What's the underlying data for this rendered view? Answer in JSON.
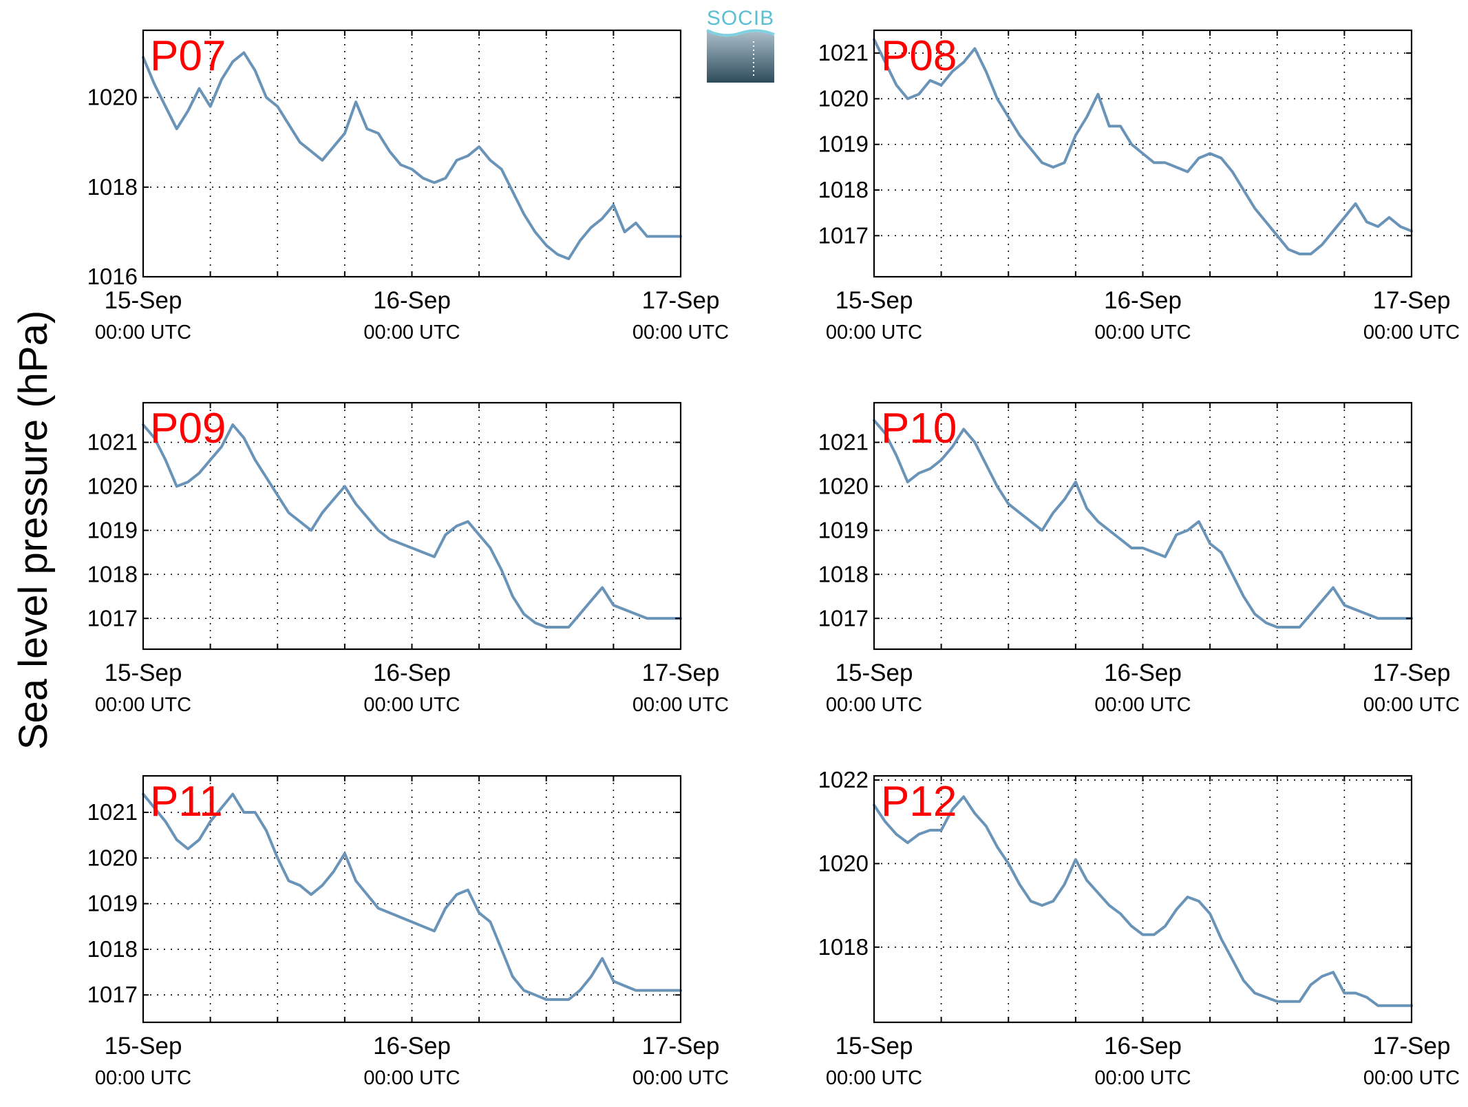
{
  "figure": {
    "ylabel": "Sea level pressure (hPa)",
    "logo_text": "SOCIB",
    "line_color": "#6a93b8",
    "title_color": "#ff0000"
  },
  "chart_data": [
    {
      "type": "line",
      "title": "P07",
      "x_ticks": [
        {
          "date": "15-Sep",
          "time": "00:00 UTC"
        },
        {
          "date": "16-Sep",
          "time": "00:00 UTC"
        },
        {
          "date": "17-Sep",
          "time": "00:00 UTC"
        }
      ],
      "x_range_hours": [
        0,
        48
      ],
      "ylim": [
        1016,
        1021.5
      ],
      "yticks": [
        1016,
        1018,
        1020
      ],
      "grid": true,
      "x": [
        0,
        1,
        2,
        3,
        4,
        5,
        6,
        7,
        8,
        9,
        10,
        11,
        12,
        13,
        14,
        15,
        16,
        17,
        18,
        19,
        20,
        21,
        22,
        23,
        24,
        25,
        26,
        27,
        28,
        29,
        30,
        31,
        32,
        33,
        34,
        35,
        36,
        37,
        38,
        39,
        40,
        41,
        42,
        43,
        44,
        45,
        46,
        47,
        48
      ],
      "y": [
        1020.9,
        1020.3,
        1019.8,
        1019.3,
        1019.7,
        1020.2,
        1019.8,
        1020.4,
        1020.8,
        1021.0,
        1020.6,
        1020.0,
        1019.8,
        1019.4,
        1019.0,
        1018.8,
        1018.6,
        1018.9,
        1019.2,
        1019.9,
        1019.3,
        1019.2,
        1018.8,
        1018.5,
        1018.4,
        1018.2,
        1018.1,
        1018.2,
        1018.6,
        1018.7,
        1018.9,
        1018.6,
        1018.4,
        1017.9,
        1017.4,
        1017.0,
        1016.7,
        1016.5,
        1016.4,
        1016.8,
        1017.1,
        1017.3,
        1017.6,
        1017.0,
        1017.2,
        1016.9,
        1016.9,
        1016.9,
        1016.9
      ]
    },
    {
      "type": "line",
      "title": "P08",
      "x_ticks": [
        {
          "date": "15-Sep",
          "time": "00:00 UTC"
        },
        {
          "date": "16-Sep",
          "time": "00:00 UTC"
        },
        {
          "date": "17-Sep",
          "time": "00:00 UTC"
        }
      ],
      "x_range_hours": [
        0,
        48
      ],
      "ylim": [
        1016.1,
        1021.5
      ],
      "yticks": [
        1017,
        1018,
        1019,
        1020,
        1021
      ],
      "grid": true,
      "x": [
        0,
        1,
        2,
        3,
        4,
        5,
        6,
        7,
        8,
        9,
        10,
        11,
        12,
        13,
        14,
        15,
        16,
        17,
        18,
        19,
        20,
        21,
        22,
        23,
        24,
        25,
        26,
        27,
        28,
        29,
        30,
        31,
        32,
        33,
        34,
        35,
        36,
        37,
        38,
        39,
        40,
        41,
        42,
        43,
        44,
        45,
        46,
        47,
        48
      ],
      "y": [
        1021.3,
        1020.8,
        1020.3,
        1020.0,
        1020.1,
        1020.4,
        1020.3,
        1020.6,
        1020.8,
        1021.1,
        1020.6,
        1020.0,
        1019.6,
        1019.2,
        1018.9,
        1018.6,
        1018.5,
        1018.6,
        1019.2,
        1019.6,
        1020.1,
        1019.4,
        1019.4,
        1019.0,
        1018.8,
        1018.6,
        1018.6,
        1018.5,
        1018.4,
        1018.7,
        1018.8,
        1018.7,
        1018.4,
        1018.0,
        1017.6,
        1017.3,
        1017.0,
        1016.7,
        1016.6,
        1016.6,
        1016.8,
        1017.1,
        1017.4,
        1017.7,
        1017.3,
        1017.2,
        1017.4,
        1017.2,
        1017.1
      ]
    },
    {
      "type": "line",
      "title": "P09",
      "x_ticks": [
        {
          "date": "15-Sep",
          "time": "00:00 UTC"
        },
        {
          "date": "16-Sep",
          "time": "00:00 UTC"
        },
        {
          "date": "17-Sep",
          "time": "00:00 UTC"
        }
      ],
      "x_range_hours": [
        0,
        48
      ],
      "ylim": [
        1016.3,
        1021.9
      ],
      "yticks": [
        1017,
        1018,
        1019,
        1020,
        1021
      ],
      "grid": true,
      "x": [
        0,
        1,
        2,
        3,
        4,
        5,
        6,
        7,
        8,
        9,
        10,
        11,
        12,
        13,
        14,
        15,
        16,
        17,
        18,
        19,
        20,
        21,
        22,
        23,
        24,
        25,
        26,
        27,
        28,
        29,
        30,
        31,
        32,
        33,
        34,
        35,
        36,
        37,
        38,
        39,
        40,
        41,
        42,
        43,
        44,
        45,
        46,
        47,
        48
      ],
      "y": [
        1021.4,
        1021.1,
        1020.6,
        1020.0,
        1020.1,
        1020.3,
        1020.6,
        1020.9,
        1021.4,
        1021.1,
        1020.6,
        1020.2,
        1019.8,
        1019.4,
        1019.2,
        1019.0,
        1019.4,
        1019.7,
        1020.0,
        1019.6,
        1019.3,
        1019.0,
        1018.8,
        1018.7,
        1018.6,
        1018.5,
        1018.4,
        1018.9,
        1019.1,
        1019.2,
        1018.9,
        1018.6,
        1018.1,
        1017.5,
        1017.1,
        1016.9,
        1016.8,
        1016.8,
        1016.8,
        1017.1,
        1017.4,
        1017.7,
        1017.3,
        1017.2,
        1017.1,
        1017.0,
        1017.0,
        1017.0,
        1017.0
      ]
    },
    {
      "type": "line",
      "title": "P10",
      "x_ticks": [
        {
          "date": "15-Sep",
          "time": "00:00 UTC"
        },
        {
          "date": "16-Sep",
          "time": "00:00 UTC"
        },
        {
          "date": "17-Sep",
          "time": "00:00 UTC"
        }
      ],
      "x_range_hours": [
        0,
        48
      ],
      "ylim": [
        1016.3,
        1021.9
      ],
      "yticks": [
        1017,
        1018,
        1019,
        1020,
        1021
      ],
      "grid": true,
      "x": [
        0,
        1,
        2,
        3,
        4,
        5,
        6,
        7,
        8,
        9,
        10,
        11,
        12,
        13,
        14,
        15,
        16,
        17,
        18,
        19,
        20,
        21,
        22,
        23,
        24,
        25,
        26,
        27,
        28,
        29,
        30,
        31,
        32,
        33,
        34,
        35,
        36,
        37,
        38,
        39,
        40,
        41,
        42,
        43,
        44,
        45,
        46,
        47,
        48
      ],
      "y": [
        1021.5,
        1021.2,
        1020.7,
        1020.1,
        1020.3,
        1020.4,
        1020.6,
        1020.9,
        1021.3,
        1021.0,
        1020.5,
        1020.0,
        1019.6,
        1019.4,
        1019.2,
        1019.0,
        1019.4,
        1019.7,
        1020.1,
        1019.5,
        1019.2,
        1019.0,
        1018.8,
        1018.6,
        1018.6,
        1018.5,
        1018.4,
        1018.9,
        1019.0,
        1019.2,
        1018.7,
        1018.5,
        1018.0,
        1017.5,
        1017.1,
        1016.9,
        1016.8,
        1016.8,
        1016.8,
        1017.1,
        1017.4,
        1017.7,
        1017.3,
        1017.2,
        1017.1,
        1017.0,
        1017.0,
        1017.0,
        1017.0
      ]
    },
    {
      "type": "line",
      "title": "P11",
      "x_ticks": [
        {
          "date": "15-Sep",
          "time": "00:00 UTC"
        },
        {
          "date": "16-Sep",
          "time": "00:00 UTC"
        },
        {
          "date": "17-Sep",
          "time": "00:00 UTC"
        }
      ],
      "x_range_hours": [
        0,
        48
      ],
      "ylim": [
        1016.4,
        1021.8
      ],
      "yticks": [
        1017,
        1018,
        1019,
        1020,
        1021
      ],
      "grid": true,
      "x": [
        0,
        1,
        2,
        3,
        4,
        5,
        6,
        7,
        8,
        9,
        10,
        11,
        12,
        13,
        14,
        15,
        16,
        17,
        18,
        19,
        20,
        21,
        22,
        23,
        24,
        25,
        26,
        27,
        28,
        29,
        30,
        31,
        32,
        33,
        34,
        35,
        36,
        37,
        38,
        39,
        40,
        41,
        42,
        43,
        44,
        45,
        46,
        47,
        48
      ],
      "y": [
        1021.4,
        1021.1,
        1020.8,
        1020.4,
        1020.2,
        1020.4,
        1020.8,
        1021.1,
        1021.4,
        1021.0,
        1021.0,
        1020.6,
        1020.0,
        1019.5,
        1019.4,
        1019.2,
        1019.4,
        1019.7,
        1020.1,
        1019.5,
        1019.2,
        1018.9,
        1018.8,
        1018.7,
        1018.6,
        1018.5,
        1018.4,
        1018.9,
        1019.2,
        1019.3,
        1018.8,
        1018.6,
        1018.0,
        1017.4,
        1017.1,
        1017.0,
        1016.9,
        1016.9,
        1016.9,
        1017.1,
        1017.4,
        1017.8,
        1017.3,
        1017.2,
        1017.1,
        1017.1,
        1017.1,
        1017.1,
        1017.1
      ]
    },
    {
      "type": "line",
      "title": "P12",
      "x_ticks": [
        {
          "date": "15-Sep",
          "time": "00:00 UTC"
        },
        {
          "date": "16-Sep",
          "time": "00:00 UTC"
        },
        {
          "date": "17-Sep",
          "time": "00:00 UTC"
        }
      ],
      "x_range_hours": [
        0,
        48
      ],
      "ylim": [
        1016.2,
        1022.1
      ],
      "yticks": [
        1018,
        1020,
        1022
      ],
      "grid": true,
      "x": [
        0,
        1,
        2,
        3,
        4,
        5,
        6,
        7,
        8,
        9,
        10,
        11,
        12,
        13,
        14,
        15,
        16,
        17,
        18,
        19,
        20,
        21,
        22,
        23,
        24,
        25,
        26,
        27,
        28,
        29,
        30,
        31,
        32,
        33,
        34,
        35,
        36,
        37,
        38,
        39,
        40,
        41,
        42,
        43,
        44,
        45,
        46,
        47,
        48
      ],
      "y": [
        1021.4,
        1021.0,
        1020.7,
        1020.5,
        1020.7,
        1020.8,
        1020.8,
        1021.3,
        1021.6,
        1021.2,
        1020.9,
        1020.4,
        1020.0,
        1019.5,
        1019.1,
        1019.0,
        1019.1,
        1019.5,
        1020.1,
        1019.6,
        1019.3,
        1019.0,
        1018.8,
        1018.5,
        1018.3,
        1018.3,
        1018.5,
        1018.9,
        1019.2,
        1019.1,
        1018.8,
        1018.2,
        1017.7,
        1017.2,
        1016.9,
        1016.8,
        1016.7,
        1016.7,
        1016.7,
        1017.1,
        1017.3,
        1017.4,
        1016.9,
        1016.9,
        1016.8,
        1016.6,
        1016.6,
        1016.6,
        1016.6
      ]
    }
  ]
}
